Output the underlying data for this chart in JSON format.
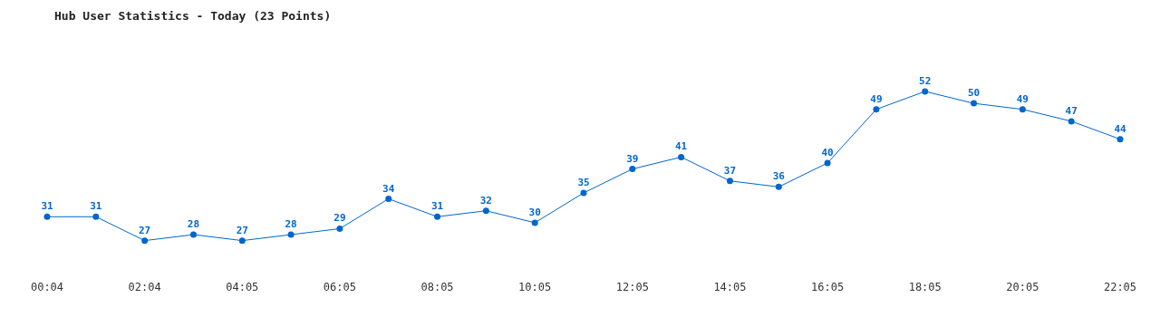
{
  "chart_data": {
    "type": "line",
    "title": "Hub User Statistics - Today (23 Points)",
    "categories": [
      "00:04",
      null,
      "02:04",
      null,
      "04:05",
      null,
      "06:05",
      null,
      "08:05",
      null,
      "10:05",
      null,
      "12:05",
      null,
      "14:05",
      null,
      "16:05",
      null,
      "18:05",
      null,
      "20:05",
      null,
      "22:05"
    ],
    "series": [
      {
        "color": "#0066cc",
        "values": [
          31,
          31,
          27,
          28,
          27,
          28,
          29,
          34,
          31,
          32,
          30,
          35,
          39,
          41,
          37,
          36,
          40,
          49,
          52,
          50,
          49,
          47,
          44
        ]
      }
    ],
    "data_labels": true,
    "marker": "circle",
    "tick_labels": "x"
  }
}
